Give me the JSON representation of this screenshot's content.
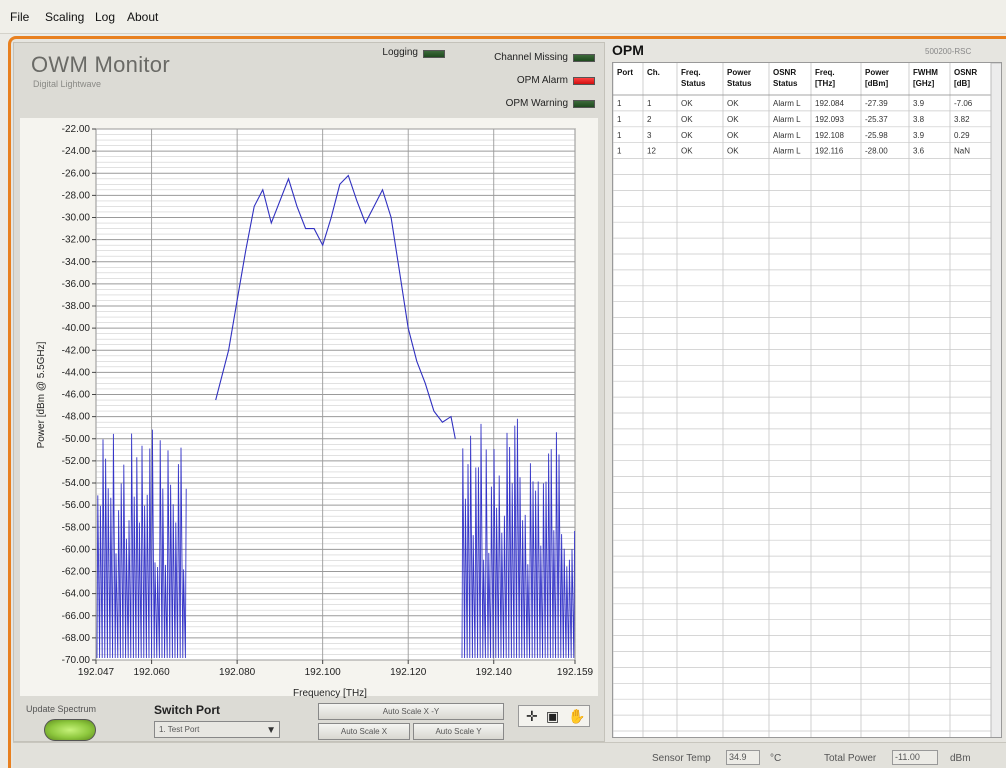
{
  "menu": [
    "File",
    "Scaling",
    "Log",
    "About"
  ],
  "app": {
    "title": "OWM Monitor",
    "subtitle": "Digital Lightwave"
  },
  "indicators": {
    "logging": {
      "label": "Logging",
      "state": "off",
      "color": "#2f5a2c"
    },
    "channel_missing": {
      "label": "Channel Missing",
      "state": "off",
      "color": "#2f5a2c"
    },
    "opm_alarm": {
      "label": "OPM Alarm",
      "state": "on",
      "color": "#ee2222"
    },
    "opm_warning": {
      "label": "OPM Warning",
      "state": "off",
      "color": "#2f5a2c"
    }
  },
  "chart_data": {
    "type": "line",
    "title": "",
    "xlabel": "Frequency [THz]",
    "ylabel": "Power [dBm @ 5.5GHz]",
    "xlim": [
      192.047,
      192.159
    ],
    "ylim": [
      -70,
      -22
    ],
    "xticks": [
      "192.047",
      "192.060",
      "192.080",
      "192.100",
      "192.120",
      "192.140",
      "192.159"
    ],
    "xtick_values": [
      192.047,
      192.06,
      192.08,
      192.1,
      192.12,
      192.14,
      192.159
    ],
    "yticks": [
      "-22.00",
      "-24.00",
      "-26.00",
      "-28.00",
      "-30.00",
      "-32.00",
      "-34.00",
      "-36.00",
      "-38.00",
      "-40.00",
      "-42.00",
      "-44.00",
      "-46.00",
      "-48.00",
      "-50.00",
      "-52.00",
      "-54.00",
      "-56.00",
      "-58.00",
      "-60.00",
      "-62.00",
      "-64.00",
      "-66.00",
      "-68.00",
      "-70.00"
    ],
    "grid": true,
    "line_color": "#3030c0",
    "series": [
      {
        "x": [
          192.075,
          192.076,
          192.078,
          192.08,
          192.082,
          192.084,
          192.086,
          192.088,
          192.09,
          192.092,
          192.094,
          192.096,
          192.098,
          192.1,
          192.102,
          192.104,
          192.106,
          192.108,
          192.11,
          192.112,
          192.114,
          192.116,
          192.118,
          192.12,
          192.122,
          192.124,
          192.126,
          192.128,
          192.13,
          192.131
        ],
        "y": [
          -46.5,
          -45,
          -42,
          -37.5,
          -33,
          -29,
          -27.5,
          -30.5,
          -28.5,
          -26.5,
          -29,
          -31,
          -31,
          -32.5,
          -30,
          -27,
          -26.2,
          -28.5,
          -30.5,
          -29,
          -27.5,
          -30,
          -35,
          -40,
          -43,
          -45,
          -47.5,
          -48.5,
          -48,
          -50
        ]
      }
    ]
  },
  "chart_buttons": {
    "auto_xy": "Auto Scale X -Y",
    "auto_x": "Auto Scale X",
    "auto_y": "Auto Scale Y"
  },
  "update": {
    "label": "Update Spectrum"
  },
  "switch_port": {
    "label": "Switch Port",
    "value": "1. Test Port"
  },
  "opm": {
    "title": "OPM",
    "id": "500200-RSC",
    "headers": [
      [
        "Port"
      ],
      [
        "Ch."
      ],
      [
        "Freq.",
        "Status"
      ],
      [
        "Power",
        "Status"
      ],
      [
        "OSNR",
        "Status"
      ],
      [
        "Freq.",
        "[THz]"
      ],
      [
        "Power",
        "[dBm]"
      ],
      [
        "FWHM",
        "[GHz]"
      ],
      [
        "OSNR",
        "[dB]"
      ]
    ],
    "rows": [
      [
        "1",
        "1",
        "OK",
        "OK",
        "Alarm L",
        "192.084",
        "-27.39",
        "3.9",
        "-7.06"
      ],
      [
        "1",
        "2",
        "OK",
        "OK",
        "Alarm L",
        "192.093",
        "-25.37",
        "3.8",
        "3.82"
      ],
      [
        "1",
        "3",
        "OK",
        "OK",
        "Alarm L",
        "192.108",
        "-25.98",
        "3.9",
        "0.29"
      ],
      [
        "1",
        "12",
        "OK",
        "OK",
        "Alarm L",
        "192.116",
        "-28.00",
        "3.6",
        "NaN"
      ]
    ]
  },
  "status": {
    "sensor_temp_label": "Sensor Temp",
    "sensor_temp_value": "34.9",
    "sensor_temp_unit": "°C",
    "total_power_label": "Total Power",
    "total_power_value": "-11.00",
    "total_power_unit": "dBm"
  }
}
